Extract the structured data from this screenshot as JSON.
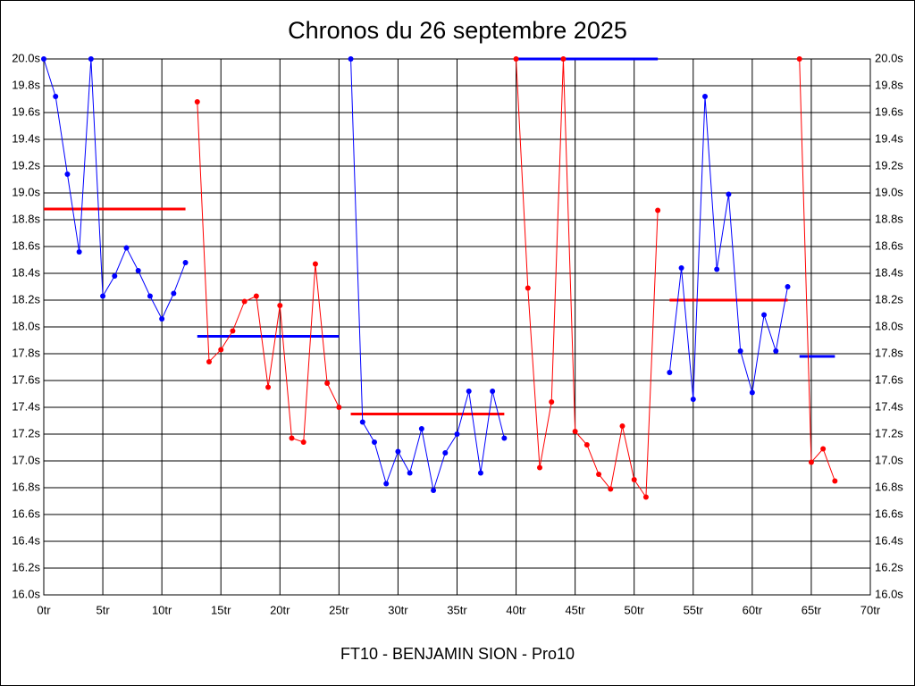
{
  "chart_data": {
    "type": "line",
    "title": "Chronos du 26 septembre 2025",
    "footer": "FT10 - BENJAMIN SION - Pro10",
    "xlim": [
      0,
      70
    ],
    "ylim": [
      16,
      20
    ],
    "grid": true,
    "xticks": [
      {
        "value": 0,
        "label": "0tr"
      },
      {
        "value": 5,
        "label": "5tr"
      },
      {
        "value": 10,
        "label": "10tr"
      },
      {
        "value": 15,
        "label": "15tr"
      },
      {
        "value": 20,
        "label": "20tr"
      },
      {
        "value": 25,
        "label": "25tr"
      },
      {
        "value": 30,
        "label": "30tr"
      },
      {
        "value": 35,
        "label": "35tr"
      },
      {
        "value": 40,
        "label": "40tr"
      },
      {
        "value": 45,
        "label": "45tr"
      },
      {
        "value": 50,
        "label": "50tr"
      },
      {
        "value": 55,
        "label": "55tr"
      },
      {
        "value": 60,
        "label": "60tr"
      },
      {
        "value": 65,
        "label": "65tr"
      },
      {
        "value": 70,
        "label": "70tr"
      }
    ],
    "yticks": [
      {
        "value": 16,
        "label": "16.0s"
      },
      {
        "value": 16.2,
        "label": "16.2s"
      },
      {
        "value": 16.4,
        "label": "16.4s"
      },
      {
        "value": 16.6,
        "label": "16.6s"
      },
      {
        "value": 16.8,
        "label": "16.8s"
      },
      {
        "value": 17,
        "label": "17.0s"
      },
      {
        "value": 17.2,
        "label": "17.2s"
      },
      {
        "value": 17.4,
        "label": "17.4s"
      },
      {
        "value": 17.6,
        "label": "17.6s"
      },
      {
        "value": 17.8,
        "label": "17.8s"
      },
      {
        "value": 18,
        "label": "18.0s"
      },
      {
        "value": 18.2,
        "label": "18.2s"
      },
      {
        "value": 18.4,
        "label": "18.4s"
      },
      {
        "value": 18.6,
        "label": "18.6s"
      },
      {
        "value": 18.8,
        "label": "18.8s"
      },
      {
        "value": 19,
        "label": "19.0s"
      },
      {
        "value": 19.2,
        "label": "19.2s"
      },
      {
        "value": 19.4,
        "label": "19.4s"
      },
      {
        "value": 19.6,
        "label": "19.6s"
      },
      {
        "value": 19.8,
        "label": "19.8s"
      },
      {
        "value": 20,
        "label": "20.0s"
      }
    ],
    "series": [
      {
        "color": "#0000ff",
        "x": [
          0,
          1,
          2,
          3,
          4,
          5,
          6,
          7,
          8,
          9,
          10,
          11,
          12
        ],
        "values": [
          20.0,
          19.72,
          19.14,
          18.56,
          20.0,
          18.23,
          18.38,
          18.59,
          18.42,
          18.23,
          18.06,
          18.25,
          18.48
        ]
      },
      {
        "color": "#ff0000",
        "x": [
          13,
          14,
          15,
          16,
          17,
          18,
          19,
          20,
          21,
          22,
          23,
          24,
          25
        ],
        "values": [
          19.68,
          17.74,
          17.83,
          17.97,
          18.19,
          18.23,
          17.55,
          18.16,
          17.17,
          17.14,
          18.47,
          17.58,
          17.4
        ]
      },
      {
        "color": "#0000ff",
        "x": [
          26,
          27,
          28,
          29,
          30,
          31,
          32,
          33,
          34,
          35,
          36,
          37,
          38,
          39
        ],
        "values": [
          20.0,
          17.29,
          17.14,
          16.83,
          17.07,
          16.91,
          17.24,
          16.78,
          17.06,
          17.2,
          17.52,
          16.91,
          17.52,
          17.17
        ]
      },
      {
        "color": "#ff0000",
        "x": [
          40,
          41,
          42,
          43,
          44,
          45,
          46,
          47,
          48,
          49,
          50,
          51,
          52
        ],
        "values": [
          20.0,
          18.29,
          16.95,
          17.44,
          20.0,
          17.22,
          17.12,
          16.9,
          16.79,
          17.26,
          16.86,
          16.73,
          18.87
        ]
      },
      {
        "color": "#0000ff",
        "x": [
          53,
          54,
          55,
          56,
          57,
          58,
          59,
          60,
          61,
          62,
          63
        ],
        "values": [
          17.66,
          18.44,
          17.46,
          19.72,
          18.43,
          18.99,
          17.82,
          17.51,
          18.09,
          17.82,
          18.3
        ]
      },
      {
        "color": "#ff0000",
        "x": [
          64,
          65,
          66,
          67
        ],
        "values": [
          20.0,
          16.99,
          17.09,
          16.85
        ]
      }
    ],
    "averages": [
      {
        "color": "#ff0000",
        "x": [
          0,
          12
        ],
        "value": 18.88
      },
      {
        "color": "#0000ff",
        "x": [
          13,
          25
        ],
        "value": 17.93
      },
      {
        "color": "#ff0000",
        "x": [
          26,
          39
        ],
        "value": 17.35
      },
      {
        "color": "#0000ff",
        "x": [
          40,
          52
        ],
        "value": 20.0
      },
      {
        "color": "#ff0000",
        "x": [
          53,
          63
        ],
        "value": 18.2
      },
      {
        "color": "#0000ff",
        "x": [
          64,
          67
        ],
        "value": 17.78
      }
    ]
  }
}
